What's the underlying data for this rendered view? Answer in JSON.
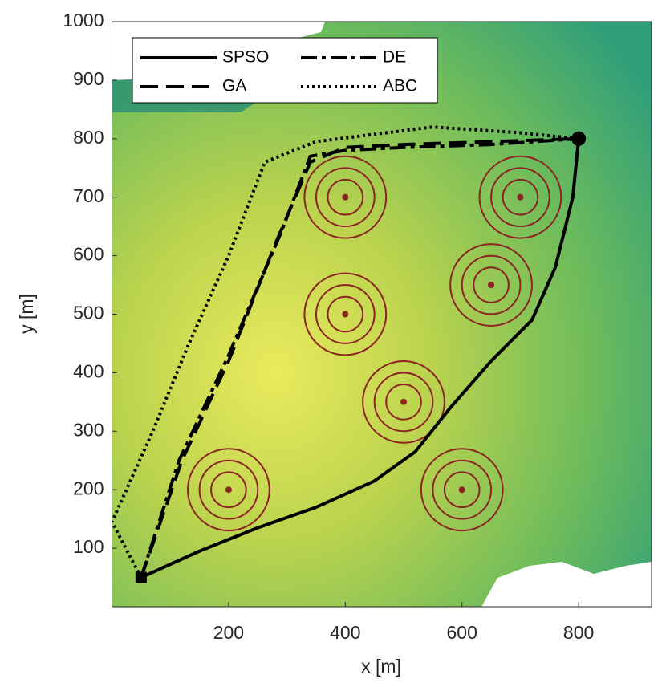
{
  "chart_data": {
    "type": "line",
    "xlabel": "x [m]",
    "ylabel": "y [m]",
    "xlim": [
      0,
      925
    ],
    "ylim": [
      0,
      1000
    ],
    "xticks": [
      200,
      400,
      600,
      800
    ],
    "yticks": [
      100,
      200,
      300,
      400,
      500,
      600,
      700,
      800,
      900,
      1000
    ],
    "series": [
      {
        "name": "SPSO",
        "color": "#000000",
        "style": "solid",
        "x": [
          50,
          150,
          250,
          350,
          450,
          520,
          580,
          650,
          720,
          760,
          790,
          800
        ],
        "values": [
          50,
          95,
          135,
          170,
          215,
          265,
          340,
          420,
          490,
          580,
          700,
          800
        ]
      },
      {
        "name": "GA",
        "color": "#000000",
        "style": "dashed",
        "x": [
          50,
          120,
          200,
          280,
          340,
          400,
          500,
          650,
          800
        ],
        "values": [
          50,
          250,
          420,
          620,
          760,
          785,
          790,
          795,
          800
        ]
      },
      {
        "name": "DE",
        "color": "#000000",
        "style": "dashdot",
        "x": [
          50,
          115,
          200,
          290,
          340,
          400,
          500,
          650,
          800
        ],
        "values": [
          50,
          250,
          430,
          640,
          770,
          780,
          785,
          790,
          800
        ]
      },
      {
        "name": "ABC",
        "color": "#000000",
        "style": "dotted",
        "x": [
          50,
          0,
          70,
          130,
          200,
          262,
          350,
          550,
          700,
          800
        ],
        "values": [
          50,
          145,
          300,
          445,
          600,
          760,
          795,
          820,
          810,
          800
        ]
      }
    ],
    "obstacles": {
      "color": "#8b2323",
      "x": [
        400,
        700,
        650,
        400,
        500,
        200,
        600
      ],
      "y": [
        700,
        700,
        550,
        500,
        350,
        200,
        200
      ],
      "radii": [
        30,
        50,
        70
      ]
    },
    "legend": "top-left"
  }
}
